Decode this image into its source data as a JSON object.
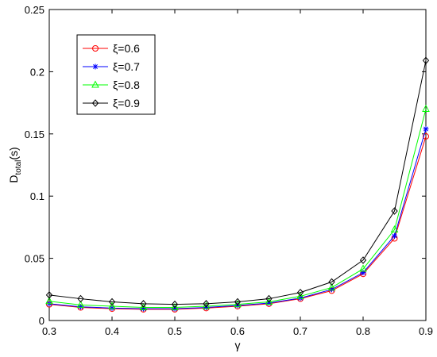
{
  "chart_data": {
    "type": "line",
    "title": "",
    "xlabel": "γ",
    "ylabel": "D",
    "ylabel_sub": "total",
    "ylabel_unit": "(s)",
    "xlim": [
      0.3,
      0.9
    ],
    "ylim": [
      0,
      0.25
    ],
    "xticks": [
      0.3,
      0.4,
      0.5,
      0.6,
      0.7,
      0.8,
      0.9
    ],
    "xtick_labels": [
      "0.3",
      "0.4",
      "0.5",
      "0.6",
      "0.7",
      "0.8",
      "0.9"
    ],
    "yticks": [
      0,
      0.05,
      0.1,
      0.15,
      0.2,
      0.25
    ],
    "ytick_labels": [
      "0",
      "0.05",
      "0.1",
      "0.15",
      "0.2",
      "0.25"
    ],
    "grid": false,
    "legend_position": "top-left",
    "x": [
      0.3,
      0.35,
      0.4,
      0.45,
      0.5,
      0.55,
      0.6,
      0.65,
      0.7,
      0.75,
      0.8,
      0.85,
      0.9
    ],
    "series": [
      {
        "name": "ξ=0.6",
        "color": "#ff0000",
        "marker": "circle",
        "values": [
          0.013,
          0.0105,
          0.0095,
          0.009,
          0.009,
          0.01,
          0.0115,
          0.0135,
          0.0175,
          0.024,
          0.0375,
          0.066,
          0.148
        ]
      },
      {
        "name": "ξ=0.7",
        "color": "#0000ff",
        "marker": "star",
        "values": [
          0.0135,
          0.011,
          0.01,
          0.0095,
          0.0095,
          0.0105,
          0.012,
          0.014,
          0.018,
          0.025,
          0.0385,
          0.068,
          0.154
        ]
      },
      {
        "name": "ξ=0.8",
        "color": "#00ff00",
        "marker": "triangle",
        "values": [
          0.0155,
          0.0125,
          0.0115,
          0.0105,
          0.0105,
          0.0115,
          0.013,
          0.015,
          0.0195,
          0.0265,
          0.0415,
          0.073,
          0.17
        ]
      },
      {
        "name": "ξ=0.9",
        "color": "#000000",
        "marker": "diamond",
        "values": [
          0.0205,
          0.0175,
          0.015,
          0.0135,
          0.013,
          0.0135,
          0.015,
          0.0175,
          0.0225,
          0.031,
          0.0485,
          0.088,
          0.209
        ]
      }
    ]
  }
}
